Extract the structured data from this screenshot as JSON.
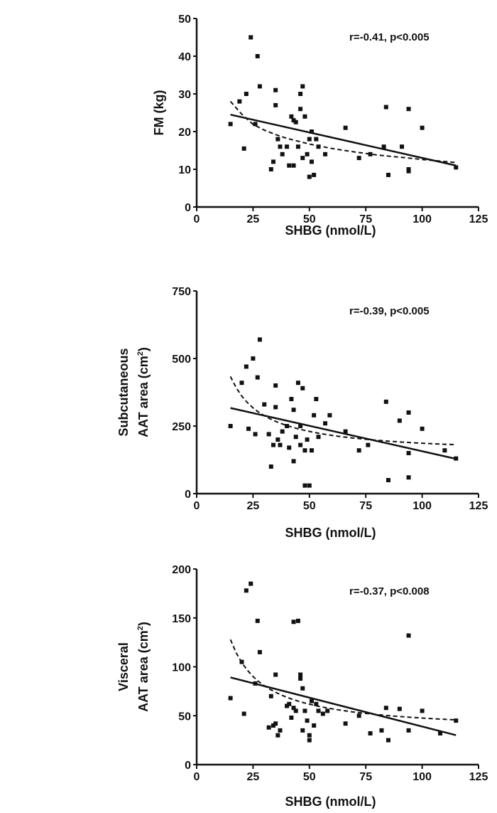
{
  "chart_data": [
    {
      "type": "scatter",
      "xlabel": "SHBG (nmol/L)",
      "ylabel": "FM (kg)",
      "ylabel_lines": [
        "FM (kg)"
      ],
      "annotation": "r=-0.41, p<0.005",
      "xlim": [
        0,
        125
      ],
      "ylim": [
        0,
        50
      ],
      "xticks": [
        0,
        25,
        50,
        75,
        100,
        125
      ],
      "yticks": [
        0,
        10,
        20,
        30,
        40,
        50
      ],
      "x": [
        15,
        19,
        21,
        22,
        24,
        26,
        27,
        28,
        33,
        34,
        35,
        35,
        36,
        37,
        38,
        40,
        41,
        42,
        43,
        43,
        44,
        45,
        46,
        46,
        47,
        47,
        48,
        49,
        50,
        50,
        51,
        51,
        52,
        53,
        54,
        57,
        66,
        72,
        77,
        83,
        84,
        85,
        91,
        94,
        94,
        94,
        100,
        115
      ],
      "y": [
        22,
        28,
        15.5,
        30,
        45,
        22,
        40,
        32,
        10,
        12,
        31,
        27,
        18,
        16,
        14,
        16,
        11,
        24,
        23,
        11,
        22.5,
        16,
        30,
        26,
        13,
        32,
        24,
        14,
        18,
        8,
        20,
        12,
        8.5,
        18,
        16,
        14,
        21,
        13,
        14,
        16,
        26.5,
        8.5,
        16,
        9.5,
        10,
        26,
        21,
        10.5
      ],
      "fits": [
        {
          "style": "solid",
          "x": [
            15,
            115
          ],
          "y": [
            24.5,
            11
          ]
        },
        {
          "style": "dashed",
          "x": [
            15,
            20,
            25,
            30,
            35,
            40,
            50,
            60,
            70,
            80,
            90,
            100,
            115
          ],
          "y": [
            28,
            24.6,
            21.9,
            20.4,
            19.2,
            18.2,
            16.7,
            15.5,
            14.6,
            13.8,
            13.2,
            12.6,
            11.8
          ]
        }
      ]
    },
    {
      "type": "scatter",
      "xlabel": "SHBG (nmol/L)",
      "ylabel": "Subcutaneous AAT area (cm2)",
      "ylabel_lines": [
        "Subcutaneous",
        "AAT area (cm2)"
      ],
      "annotation": "r=-0.39, p<0.005",
      "xlim": [
        0,
        125
      ],
      "ylim": [
        0,
        750
      ],
      "xticks": [
        0,
        25,
        50,
        75,
        100,
        125
      ],
      "yticks": [
        0,
        250,
        500,
        750
      ],
      "x": [
        15,
        20,
        22,
        23,
        25,
        26,
        27,
        28,
        30,
        32,
        33,
        34,
        35,
        35,
        36,
        37,
        38,
        40,
        41,
        42,
        43,
        43,
        44,
        45,
        46,
        46,
        47,
        48,
        48,
        49,
        50,
        51,
        52,
        53,
        54,
        57,
        59,
        66,
        72,
        76,
        84,
        85,
        90,
        94,
        94,
        94,
        100,
        110,
        115
      ],
      "y": [
        250,
        410,
        470,
        240,
        500,
        220,
        430,
        570,
        330,
        220,
        100,
        180,
        320,
        400,
        200,
        180,
        230,
        250,
        170,
        350,
        120,
        310,
        210,
        410,
        180,
        250,
        390,
        160,
        30,
        200,
        30,
        160,
        290,
        350,
        210,
        260,
        290,
        230,
        160,
        180,
        340,
        50,
        270,
        300,
        150,
        60,
        240,
        160,
        130
      ]
    },
    {
      "type": "scatter",
      "xlabel": "SHBG (nmol/L)",
      "ylabel": "Visceral AAT area (cm2)",
      "ylabel_lines": [
        "Visceral",
        "AAT area (cm2)"
      ],
      "annotation": "r=-0.37, p<0.008",
      "xlim": [
        0,
        125
      ],
      "ylim": [
        0,
        200
      ],
      "xticks": [
        0,
        25,
        50,
        75,
        100,
        125
      ],
      "yticks": [
        0,
        50,
        100,
        150,
        200
      ],
      "x": [
        15,
        20,
        21,
        22,
        24,
        26,
        27,
        28,
        32,
        33,
        34,
        35,
        35,
        36,
        37,
        40,
        41,
        42,
        43,
        43,
        44,
        45,
        46,
        46,
        47,
        47,
        48,
        49,
        50,
        50,
        51,
        52,
        53,
        54,
        56,
        58,
        66,
        72,
        77,
        82,
        84,
        85,
        90,
        94,
        94,
        100,
        108,
        115
      ],
      "y": [
        68,
        105,
        52,
        178,
        185,
        83,
        147,
        115,
        38,
        70,
        40,
        92,
        42,
        30,
        35,
        60,
        62,
        48,
        146,
        58,
        55,
        147,
        88,
        92,
        35,
        78,
        55,
        45,
        25,
        30,
        65,
        40,
        62,
        55,
        52,
        55,
        42,
        50,
        32,
        35,
        58,
        25,
        57,
        35,
        132,
        55,
        32,
        45
      ]
    }
  ]
}
